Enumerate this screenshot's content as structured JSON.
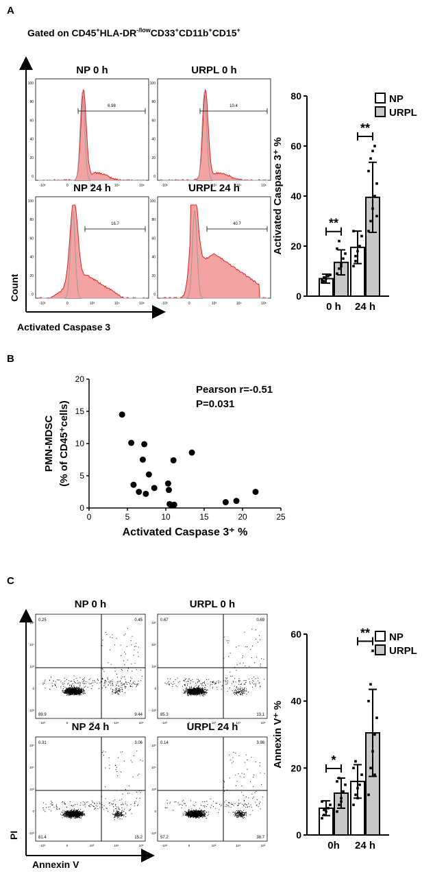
{
  "panel_a": {
    "letter": "A",
    "gating_text": "Gated on CD45⁺HLA-DR⁻/low CD33⁺CD11b⁺CD15⁺",
    "gating_parts": [
      "Gated on CD45",
      "+",
      "HLA-DR",
      "-/low",
      "CD33",
      "+",
      "CD11b",
      "+",
      "CD15",
      "+"
    ],
    "y_axis_label": "Count",
    "x_axis_label": "Activated Caspase 3",
    "histograms": [
      {
        "title": "NP 0 h",
        "gate_value": "6.98",
        "shape": "narrow"
      },
      {
        "title": "URPL 0 h",
        "gate_value": "10.4",
        "shape": "narrow"
      },
      {
        "title": "NP 24 h",
        "gate_value": "16.7",
        "shape": "medium"
      },
      {
        "title": "URPL 24 h",
        "gate_value": "40.7",
        "shape": "wide"
      }
    ],
    "hist_yticks": [
      "100",
      "80",
      "60",
      "40",
      "20",
      "0"
    ],
    "hist_xticks": [
      "-10³",
      "0",
      "10³",
      "10⁴",
      "10⁵"
    ],
    "colors": {
      "fill": "#f4a3a3",
      "line": "#e02020",
      "control": "#9a9a9a"
    }
  },
  "chart_data": [
    {
      "id": "caspase-bar",
      "type": "bar",
      "categories": [
        "0 h",
        "24 h"
      ],
      "series": [
        {
          "name": "NP",
          "values": [
            7,
            19.5
          ],
          "errors": [
            1.8,
            6.5
          ],
          "color": "#ffffff",
          "points": [
            [
              5.5,
              6,
              7,
              8,
              8.5,
              6.5,
              7.5
            ],
            [
              12,
              16,
              18,
              20,
              24,
              26,
              14
            ]
          ]
        },
        {
          "name": "URPL",
          "values": [
            13.5,
            39.5
          ],
          "errors": [
            5,
            14
          ],
          "color": "#c8c8c8",
          "points": [
            [
              9,
              11,
              13,
              15,
              17,
              19,
              22,
              12
            ],
            [
              26,
              30,
              35,
              40,
              45,
              50,
              55,
              58,
              60,
              32
            ]
          ]
        }
      ],
      "ylabel": "Activated Caspase 3⁺ %",
      "ylim": [
        0,
        80
      ],
      "yticks": [
        0,
        20,
        40,
        60,
        80
      ],
      "significance": [
        "**",
        "**"
      ],
      "legend": [
        "NP",
        "URPL"
      ],
      "legend_position": "top-right"
    },
    {
      "id": "scatter",
      "type": "scatter",
      "x": [
        4.3,
        5.5,
        5.8,
        6.5,
        7.0,
        7.2,
        7.4,
        7.8,
        8.5,
        10.3,
        10.4,
        10.5,
        10.7,
        11.0,
        11.1,
        13.4,
        17.8,
        19.2,
        21.7
      ],
      "y": [
        14.5,
        10.1,
        3.6,
        2.5,
        7.5,
        9.9,
        2.2,
        5.2,
        3.1,
        3.8,
        2.8,
        0.6,
        0.4,
        7.4,
        0.5,
        8.6,
        0.9,
        1.1,
        2.5
      ],
      "xlabel": "Activated Caspase 3⁺ %",
      "ylabel_line1": "PMN-MDSC",
      "ylabel_line2": "(% of CD45⁺cells)",
      "xlim": [
        0,
        25
      ],
      "ylim": [
        0,
        20
      ],
      "xticks": [
        0,
        5,
        10,
        15,
        20,
        25
      ],
      "yticks": [
        0,
        5,
        10,
        15,
        20
      ],
      "annotation_line1": "Pearson r=-0.51",
      "annotation_line2": "P=0.031"
    },
    {
      "id": "annexin-bar",
      "type": "bar",
      "categories": [
        "0h",
        "24 h"
      ],
      "series": [
        {
          "name": "NP",
          "values": [
            8,
            16
          ],
          "errors": [
            2.2,
            5
          ],
          "color": "#ffffff",
          "points": [
            [
              5,
              6,
              7,
              8,
              9,
              10,
              7.5
            ],
            [
              9,
              12,
              14,
              15,
              18,
              20,
              22,
              11
            ]
          ]
        },
        {
          "name": "URPL",
          "values": [
            12.5,
            30.5
          ],
          "errors": [
            4.5,
            13
          ],
          "color": "#c8c8c8",
          "points": [
            [
              7,
              9,
              11,
              13,
              15,
              16,
              17,
              10
            ],
            [
              12,
              20,
              25,
              30,
              35,
              40,
              45,
              55,
              18
            ]
          ]
        }
      ],
      "ylabel": "Annexin V⁺ %",
      "ylim": [
        0,
        60
      ],
      "yticks": [
        0,
        20,
        40,
        60
      ],
      "significance": [
        "*",
        "**"
      ],
      "legend": [
        "NP",
        "URPL"
      ],
      "legend_position": "top-right"
    }
  ],
  "panel_b": {
    "letter": "B"
  },
  "panel_c": {
    "letter": "C",
    "y_axis_label": "PI",
    "x_axis_label": "Annexin V",
    "dotplots": [
      {
        "title": "NP 0 h",
        "q": [
          "0.25",
          "0.45",
          "89.9",
          "9.44"
        ],
        "spread": 0.25
      },
      {
        "title": "URPL 0 h",
        "q": [
          "0.67",
          "0.69",
          "85.3",
          "13.1"
        ],
        "spread": 0.4
      },
      {
        "title": "NP 24 h",
        "q": [
          "0.31",
          "3.06",
          "81.4",
          "15.2"
        ],
        "spread": 0.55
      },
      {
        "title": "URPL 24 h",
        "q": [
          "0.14",
          "3.98",
          "57.2",
          "38.7"
        ],
        "spread": 0.75
      }
    ],
    "dot_yticks": [
      "10⁵",
      "10⁴",
      "10³",
      "0",
      "-10³"
    ],
    "dot_xticks": [
      "-10³",
      "0",
      "10³",
      "10⁴",
      "10⁵"
    ]
  }
}
